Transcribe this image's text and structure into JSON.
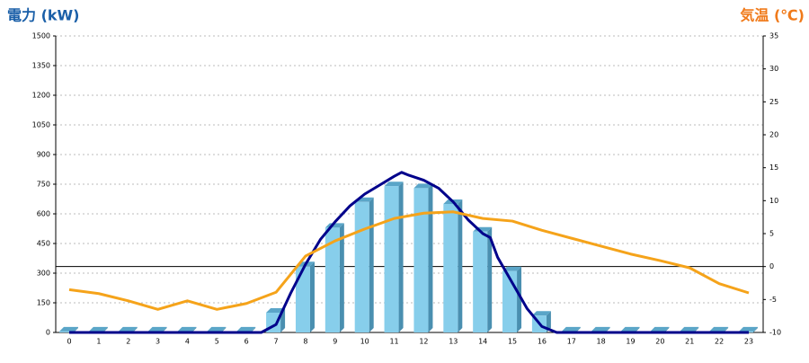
{
  "chart_data": {
    "type": "bar-line",
    "ylabel": "電力 (kW)",
    "y2label": "気温 (℃)",
    "categories": [
      "0",
      "1",
      "2",
      "3",
      "4",
      "5",
      "6",
      "7",
      "8",
      "9",
      "10",
      "11",
      "12",
      "13",
      "14",
      "15",
      "16",
      "17",
      "18",
      "19",
      "20",
      "21",
      "22",
      "23"
    ],
    "ylim": [
      0,
      1500
    ],
    "yticks": [
      0,
      150,
      300,
      450,
      600,
      750,
      900,
      1050,
      1200,
      1350,
      1500
    ],
    "y2lim": [
      -10,
      35
    ],
    "y2ticks": [
      -10,
      -5,
      0,
      5,
      10,
      15,
      20,
      25,
      30,
      35
    ],
    "grid": true,
    "reference_line": {
      "axis": "y2",
      "value": 0
    },
    "series": [
      {
        "type": "bar",
        "color": "#87ceeb",
        "values": [
          5,
          5,
          5,
          5,
          5,
          5,
          5,
          100,
          335,
          530,
          660,
          740,
          730,
          650,
          510,
          310,
          85,
          5,
          5,
          5,
          5,
          5,
          5,
          5
        ]
      },
      {
        "type": "line",
        "color": "#00008b",
        "x": [
          0,
          1,
          2,
          3,
          4,
          5,
          6,
          6.5,
          7,
          7.5,
          8,
          8.5,
          9,
          9.5,
          10,
          10.5,
          11,
          11.25,
          11.5,
          12,
          12.5,
          13,
          13.5,
          14,
          14.25,
          14.5,
          15,
          15.5,
          16,
          16.5,
          17,
          18,
          19,
          20,
          21,
          22,
          23
        ],
        "values": [
          0,
          0,
          0,
          0,
          0,
          0,
          0,
          0,
          40,
          200,
          345,
          470,
          560,
          640,
          700,
          745,
          790,
          810,
          795,
          770,
          730,
          660,
          570,
          500,
          480,
          380,
          250,
          120,
          30,
          0,
          0,
          0,
          0,
          0,
          0,
          0,
          0
        ]
      },
      {
        "type": "line",
        "axis": "y2",
        "color": "#f5a31a",
        "values": [
          -3.5,
          -4.1,
          -5.2,
          -6.5,
          -5.2,
          -6.5,
          -5.6,
          -3.9,
          1.6,
          3.9,
          5.7,
          7.3,
          8.1,
          8.3,
          7.3,
          6.9,
          5.5,
          4.3,
          3.1,
          1.9,
          0.9,
          -0.2,
          -2.6,
          -4.0
        ]
      }
    ]
  }
}
